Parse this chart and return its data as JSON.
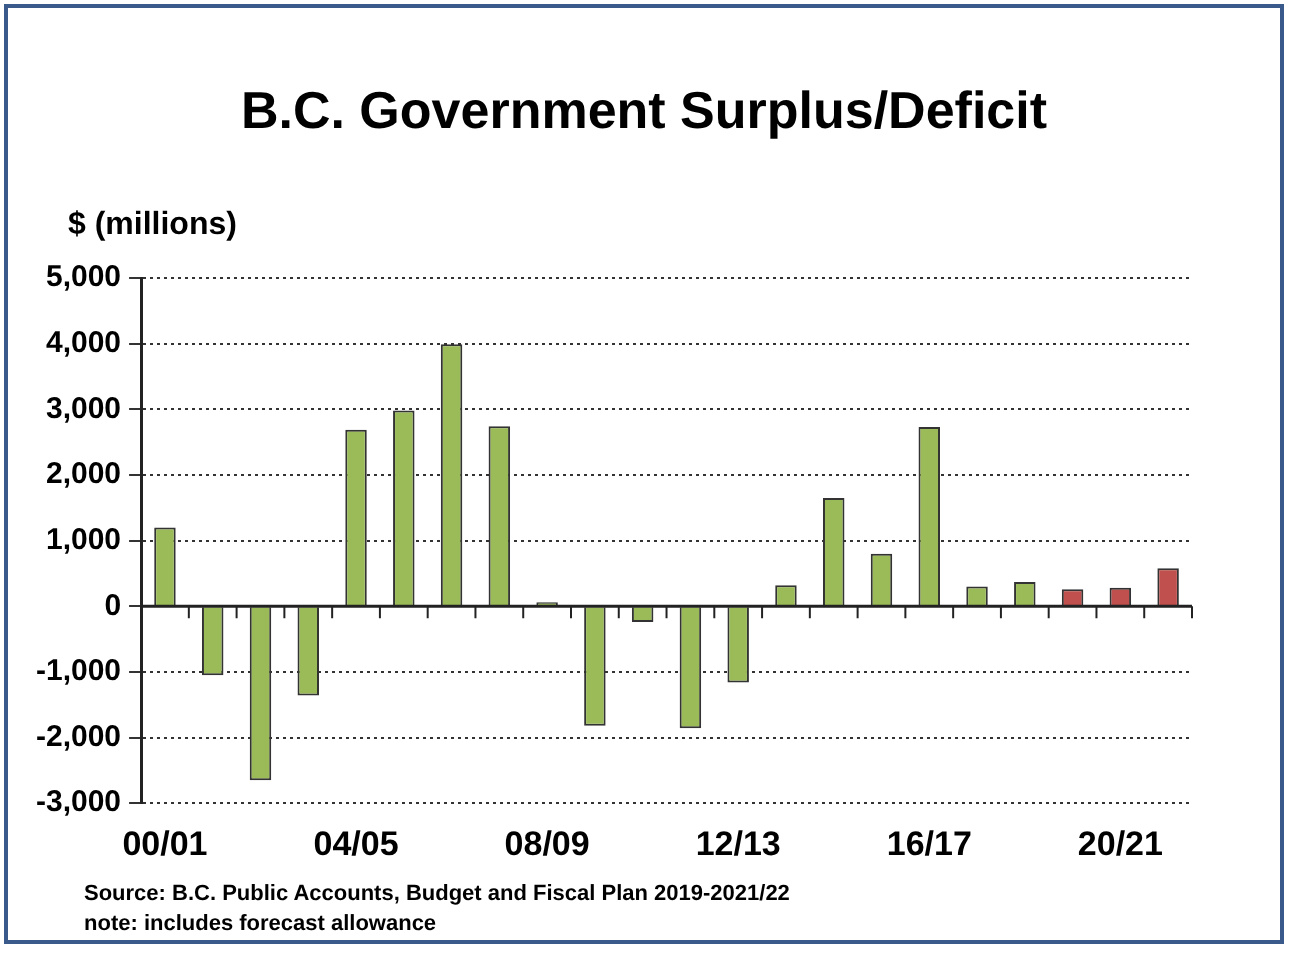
{
  "chart_data": {
    "type": "bar",
    "title": "B.C. Government Surplus/Deficit",
    "ylabel": "$ (millions)",
    "categories": [
      "00/01",
      null,
      null,
      null,
      "04/05",
      null,
      null,
      null,
      "08/09",
      null,
      null,
      null,
      "12/13",
      null,
      null,
      null,
      "16/17",
      null,
      null,
      null,
      "20/21",
      null
    ],
    "values": [
      1200,
      -1050,
      -2650,
      -1360,
      2690,
      2980,
      3990,
      2740,
      60,
      -1820,
      -240,
      -1860,
      -1160,
      320,
      1650,
      800,
      2730,
      300,
      370,
      260,
      280,
      580
    ],
    "colors": [
      "#9bbb59",
      "#9bbb59",
      "#9bbb59",
      "#9bbb59",
      "#9bbb59",
      "#9bbb59",
      "#9bbb59",
      "#9bbb59",
      "#9bbb59",
      "#9bbb59",
      "#9bbb59",
      "#9bbb59",
      "#9bbb59",
      "#9bbb59",
      "#9bbb59",
      "#9bbb59",
      "#9bbb59",
      "#9bbb59",
      "#9bbb59",
      "#c0504d",
      "#c0504d",
      "#c0504d"
    ],
    "ylim": [
      -3000,
      5000
    ],
    "yticks": [
      {
        "value": -3000,
        "label": "-3,000"
      },
      {
        "value": -2000,
        "label": "-2,000"
      },
      {
        "value": -1000,
        "label": "-1,000"
      },
      0,
      {
        "value": 1000,
        "label": "1,000"
      },
      {
        "value": 2000,
        "label": "2,000"
      },
      {
        "value": 3000,
        "label": "3,000"
      },
      {
        "value": 4000,
        "label": "4,000"
      },
      {
        "value": 5000,
        "label": "5,000"
      }
    ],
    "grid": "y",
    "legend": false,
    "annotations": [
      "Source:  B.C. Public Accounts, Budget and Fiscal Plan 2019-2021/22",
      "note: includes forecast allowance"
    ]
  }
}
